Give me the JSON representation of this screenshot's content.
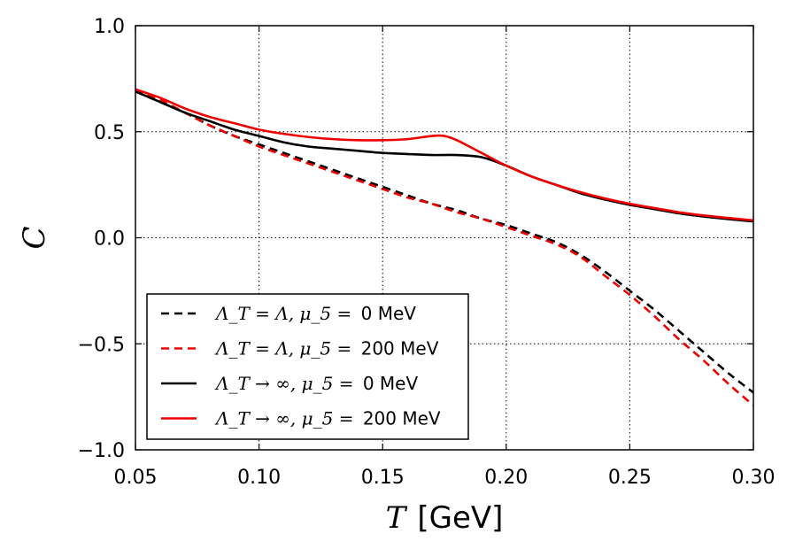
{
  "chart_data": {
    "type": "line",
    "title": "",
    "xlabel_var": "T",
    "xlabel_unit": "[GeV]",
    "ylabel": "C",
    "xlim": [
      0.05,
      0.3
    ],
    "ylim": [
      -1.0,
      1.0
    ],
    "xticks": [
      0.05,
      0.1,
      0.15,
      0.2,
      0.25,
      0.3
    ],
    "xtick_labels": [
      "0.05",
      "0.10",
      "0.15",
      "0.20",
      "0.25",
      "0.30"
    ],
    "yticks": [
      -1.0,
      -0.5,
      0.0,
      0.5,
      1.0
    ],
    "ytick_labels": [
      "−1.0",
      "−0.5",
      "0.0",
      "0.5",
      "1.0"
    ],
    "grid": true,
    "legend_position": "lower-left",
    "colors": {
      "black": "#000000",
      "red": "#ee0000"
    },
    "series": [
      {
        "name": "ΛT = Λ, μ5 = 0 MeV",
        "legend_math": "Λ_T = Λ, μ_5 = ",
        "legend_value": "0 MeV",
        "color": "#000000",
        "dash": true,
        "x": [
          0.05,
          0.06,
          0.07,
          0.08,
          0.09,
          0.1,
          0.11,
          0.12,
          0.13,
          0.14,
          0.15,
          0.16,
          0.17,
          0.18,
          0.19,
          0.2,
          0.21,
          0.22,
          0.23,
          0.24,
          0.25,
          0.26,
          0.27,
          0.28,
          0.29,
          0.3
        ],
        "y": [
          0.69,
          0.64,
          0.59,
          0.53,
          0.48,
          0.44,
          0.4,
          0.36,
          0.32,
          0.28,
          0.24,
          0.2,
          0.16,
          0.13,
          0.09,
          0.06,
          0.02,
          -0.02,
          -0.08,
          -0.16,
          -0.25,
          -0.34,
          -0.44,
          -0.54,
          -0.64,
          -0.73
        ]
      },
      {
        "name": "ΛT = Λ, μ5 = 200 MeV",
        "legend_math": "Λ_T = Λ, μ_5 = ",
        "legend_value": "200 MeV",
        "color": "#ee0000",
        "dash": true,
        "x": [
          0.05,
          0.06,
          0.07,
          0.08,
          0.09,
          0.1,
          0.11,
          0.12,
          0.13,
          0.14,
          0.15,
          0.16,
          0.17,
          0.18,
          0.19,
          0.2,
          0.21,
          0.22,
          0.23,
          0.24,
          0.25,
          0.26,
          0.27,
          0.28,
          0.29,
          0.3
        ],
        "y": [
          0.7,
          0.65,
          0.59,
          0.53,
          0.48,
          0.43,
          0.39,
          0.35,
          0.31,
          0.27,
          0.23,
          0.19,
          0.16,
          0.12,
          0.09,
          0.05,
          0.01,
          -0.03,
          -0.09,
          -0.18,
          -0.27,
          -0.37,
          -0.48,
          -0.58,
          -0.69,
          -0.79
        ]
      },
      {
        "name": "ΛT → ∞, μ5 = 0 MeV",
        "legend_math": "Λ_T → ∞, μ_5 = ",
        "legend_value": "0 MeV",
        "color": "#000000",
        "dash": false,
        "x": [
          0.05,
          0.06,
          0.07,
          0.08,
          0.09,
          0.1,
          0.11,
          0.12,
          0.13,
          0.14,
          0.15,
          0.16,
          0.17,
          0.18,
          0.19,
          0.2,
          0.21,
          0.22,
          0.23,
          0.24,
          0.25,
          0.26,
          0.27,
          0.28,
          0.29,
          0.3
        ],
        "y": [
          0.69,
          0.64,
          0.59,
          0.55,
          0.51,
          0.48,
          0.45,
          0.43,
          0.42,
          0.41,
          0.4,
          0.395,
          0.39,
          0.39,
          0.38,
          0.34,
          0.29,
          0.25,
          0.21,
          0.18,
          0.155,
          0.135,
          0.115,
          0.1,
          0.088,
          0.077
        ]
      },
      {
        "name": "ΛT → ∞, μ5 = 200 MeV",
        "legend_math": "Λ_T → ∞, μ_5 = ",
        "legend_value": "200 MeV",
        "color": "#ee0000",
        "dash": false,
        "x": [
          0.05,
          0.06,
          0.07,
          0.08,
          0.09,
          0.1,
          0.11,
          0.12,
          0.13,
          0.14,
          0.15,
          0.16,
          0.17,
          0.175,
          0.18,
          0.19,
          0.2,
          0.21,
          0.22,
          0.23,
          0.24,
          0.25,
          0.26,
          0.27,
          0.28,
          0.29,
          0.3
        ],
        "y": [
          0.7,
          0.66,
          0.61,
          0.57,
          0.54,
          0.51,
          0.49,
          0.475,
          0.465,
          0.46,
          0.46,
          0.465,
          0.48,
          0.48,
          0.46,
          0.4,
          0.34,
          0.29,
          0.25,
          0.215,
          0.185,
          0.16,
          0.14,
          0.12,
          0.105,
          0.093,
          0.082
        ]
      }
    ]
  }
}
